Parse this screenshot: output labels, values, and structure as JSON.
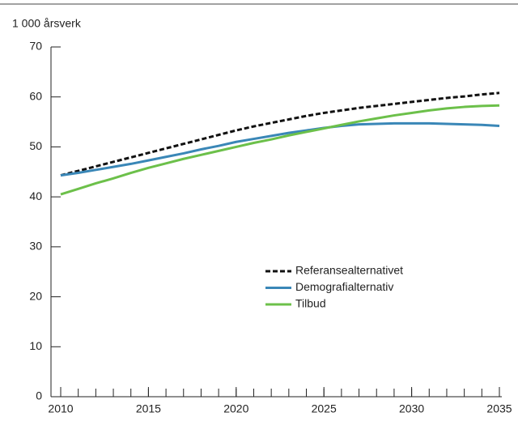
{
  "chart_data": {
    "type": "line",
    "y_axis_label": "1 000 årsverk",
    "x": [
      2010,
      2011,
      2012,
      2013,
      2014,
      2015,
      2016,
      2017,
      2018,
      2019,
      2020,
      2021,
      2022,
      2023,
      2024,
      2025,
      2026,
      2027,
      2028,
      2029,
      2030,
      2031,
      2032,
      2033,
      2034,
      2035
    ],
    "series": [
      {
        "name": "Referansealternativet",
        "color": "#111111",
        "dashed": true,
        "values": [
          44.3,
          45.2,
          46.1,
          47.0,
          47.9,
          48.8,
          49.7,
          50.6,
          51.5,
          52.4,
          53.3,
          54.1,
          54.8,
          55.5,
          56.2,
          56.8,
          57.3,
          57.8,
          58.2,
          58.6,
          59.0,
          59.4,
          59.8,
          60.1,
          60.5,
          60.8
        ]
      },
      {
        "name": "Demografialternativ",
        "color": "#3a87b7",
        "dashed": false,
        "values": [
          44.3,
          44.8,
          45.4,
          46.0,
          46.6,
          47.3,
          48.0,
          48.7,
          49.5,
          50.2,
          51.0,
          51.6,
          52.2,
          52.8,
          53.3,
          53.8,
          54.2,
          54.5,
          54.6,
          54.7,
          54.7,
          54.7,
          54.6,
          54.5,
          54.4,
          54.2
        ]
      },
      {
        "name": "Tilbud",
        "color": "#6cc04a",
        "dashed": false,
        "values": [
          40.5,
          41.6,
          42.7,
          43.7,
          44.8,
          45.8,
          46.7,
          47.6,
          48.4,
          49.2,
          50.0,
          50.8,
          51.5,
          52.3,
          53.0,
          53.7,
          54.4,
          55.1,
          55.7,
          56.3,
          56.8,
          57.3,
          57.7,
          58.0,
          58.2,
          58.3
        ]
      }
    ],
    "xlim": [
      2010,
      2035
    ],
    "xticks": [
      2010,
      2015,
      2020,
      2025,
      2030,
      2035
    ],
    "xminorticks": [
      2010,
      2011,
      2012,
      2013,
      2014,
      2015,
      2016,
      2017,
      2018,
      2019,
      2020,
      2021,
      2022,
      2023,
      2024,
      2025,
      2026,
      2027,
      2028,
      2029,
      2030,
      2031,
      2032,
      2033,
      2034,
      2035
    ],
    "ylim": [
      0,
      70
    ],
    "yticks": [
      0,
      10,
      20,
      30,
      40,
      50,
      60,
      70
    ]
  }
}
